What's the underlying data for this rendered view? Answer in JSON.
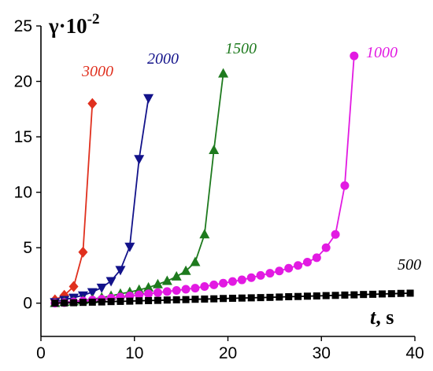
{
  "chart_data": {
    "type": "line",
    "ylabel": "γ·10",
    "ylabel_exponent": "-2",
    "xlabel_var": "t",
    "xlabel_unit": ", s",
    "xlim": [
      0,
      40
    ],
    "ylim": [
      -3,
      25
    ],
    "x_ticks": [
      0,
      10,
      20,
      30,
      40
    ],
    "y_ticks": [
      0,
      5,
      10,
      15,
      20,
      25
    ],
    "grid": false,
    "legend": "none (series labelled directly)",
    "series": [
      {
        "name": "3000",
        "color": "#e0301e",
        "marker": "diamond",
        "x": [
          1.5,
          2.5,
          3.5,
          4.5,
          5.5
        ],
        "y": [
          0.3,
          0.7,
          1.5,
          4.6,
          18.0
        ]
      },
      {
        "name": "2000",
        "color": "#12128a",
        "marker": "triangle-down",
        "x": [
          1.5,
          2.5,
          3.5,
          4.5,
          5.5,
          6.5,
          7.5,
          8.5,
          9.5,
          10.5,
          11.5
        ],
        "y": [
          0.1,
          0.3,
          0.5,
          0.7,
          1.0,
          1.4,
          2.0,
          3.0,
          5.1,
          13.0,
          18.5
        ]
      },
      {
        "name": "1500",
        "color": "#1e7a1e",
        "marker": "triangle-up",
        "x": [
          1.5,
          2.5,
          3.5,
          4.5,
          5.5,
          6.5,
          7.5,
          8.5,
          9.5,
          10.5,
          11.5,
          12.5,
          13.5,
          14.5,
          15.5,
          16.5,
          17.5,
          18.5,
          19.5
        ],
        "y": [
          0.0,
          0.1,
          0.15,
          0.25,
          0.35,
          0.5,
          0.65,
          0.85,
          1.0,
          1.2,
          1.4,
          1.7,
          2.0,
          2.4,
          2.9,
          3.7,
          6.2,
          13.8,
          20.7
        ]
      },
      {
        "name": "1000",
        "color": "#e21ae2",
        "marker": "circle",
        "x": [
          1.5,
          2.5,
          3.5,
          4.5,
          5.5,
          6.5,
          7.5,
          8.5,
          9.5,
          10.5,
          11.5,
          12.5,
          13.5,
          14.5,
          15.5,
          16.5,
          17.5,
          18.5,
          19.5,
          20.5,
          21.5,
          22.5,
          23.5,
          24.5,
          25.5,
          26.5,
          27.5,
          28.5,
          29.5,
          30.5,
          31.5,
          32.5,
          33.5
        ],
        "y": [
          0.0,
          0.05,
          0.12,
          0.2,
          0.28,
          0.36,
          0.45,
          0.55,
          0.65,
          0.75,
          0.85,
          0.95,
          1.05,
          1.15,
          1.25,
          1.35,
          1.5,
          1.65,
          1.8,
          1.95,
          2.1,
          2.3,
          2.5,
          2.7,
          2.9,
          3.15,
          3.4,
          3.7,
          4.1,
          5.0,
          6.2,
          10.6,
          22.3
        ]
      },
      {
        "name": "500",
        "color": "#000000",
        "marker": "square",
        "x": [
          1.5,
          2.5,
          3.5,
          4.5,
          5.5,
          6.5,
          7.5,
          8.5,
          9.5,
          10.5,
          11.5,
          12.5,
          13.5,
          14.5,
          15.5,
          16.5,
          17.5,
          18.5,
          19.5,
          20.5,
          21.5,
          22.5,
          23.5,
          24.5,
          25.5,
          26.5,
          27.5,
          28.5,
          29.5,
          30.5,
          31.5,
          32.5,
          33.5,
          34.5,
          35.5,
          36.5,
          37.5,
          38.5,
          39.5
        ],
        "y": [
          0.0,
          0.02,
          0.04,
          0.07,
          0.09,
          0.11,
          0.14,
          0.16,
          0.18,
          0.21,
          0.23,
          0.25,
          0.28,
          0.3,
          0.32,
          0.35,
          0.37,
          0.39,
          0.42,
          0.44,
          0.46,
          0.48,
          0.5,
          0.52,
          0.55,
          0.58,
          0.6,
          0.63,
          0.65,
          0.68,
          0.7,
          0.73,
          0.75,
          0.78,
          0.8,
          0.83,
          0.85,
          0.88,
          0.9
        ]
      }
    ]
  }
}
